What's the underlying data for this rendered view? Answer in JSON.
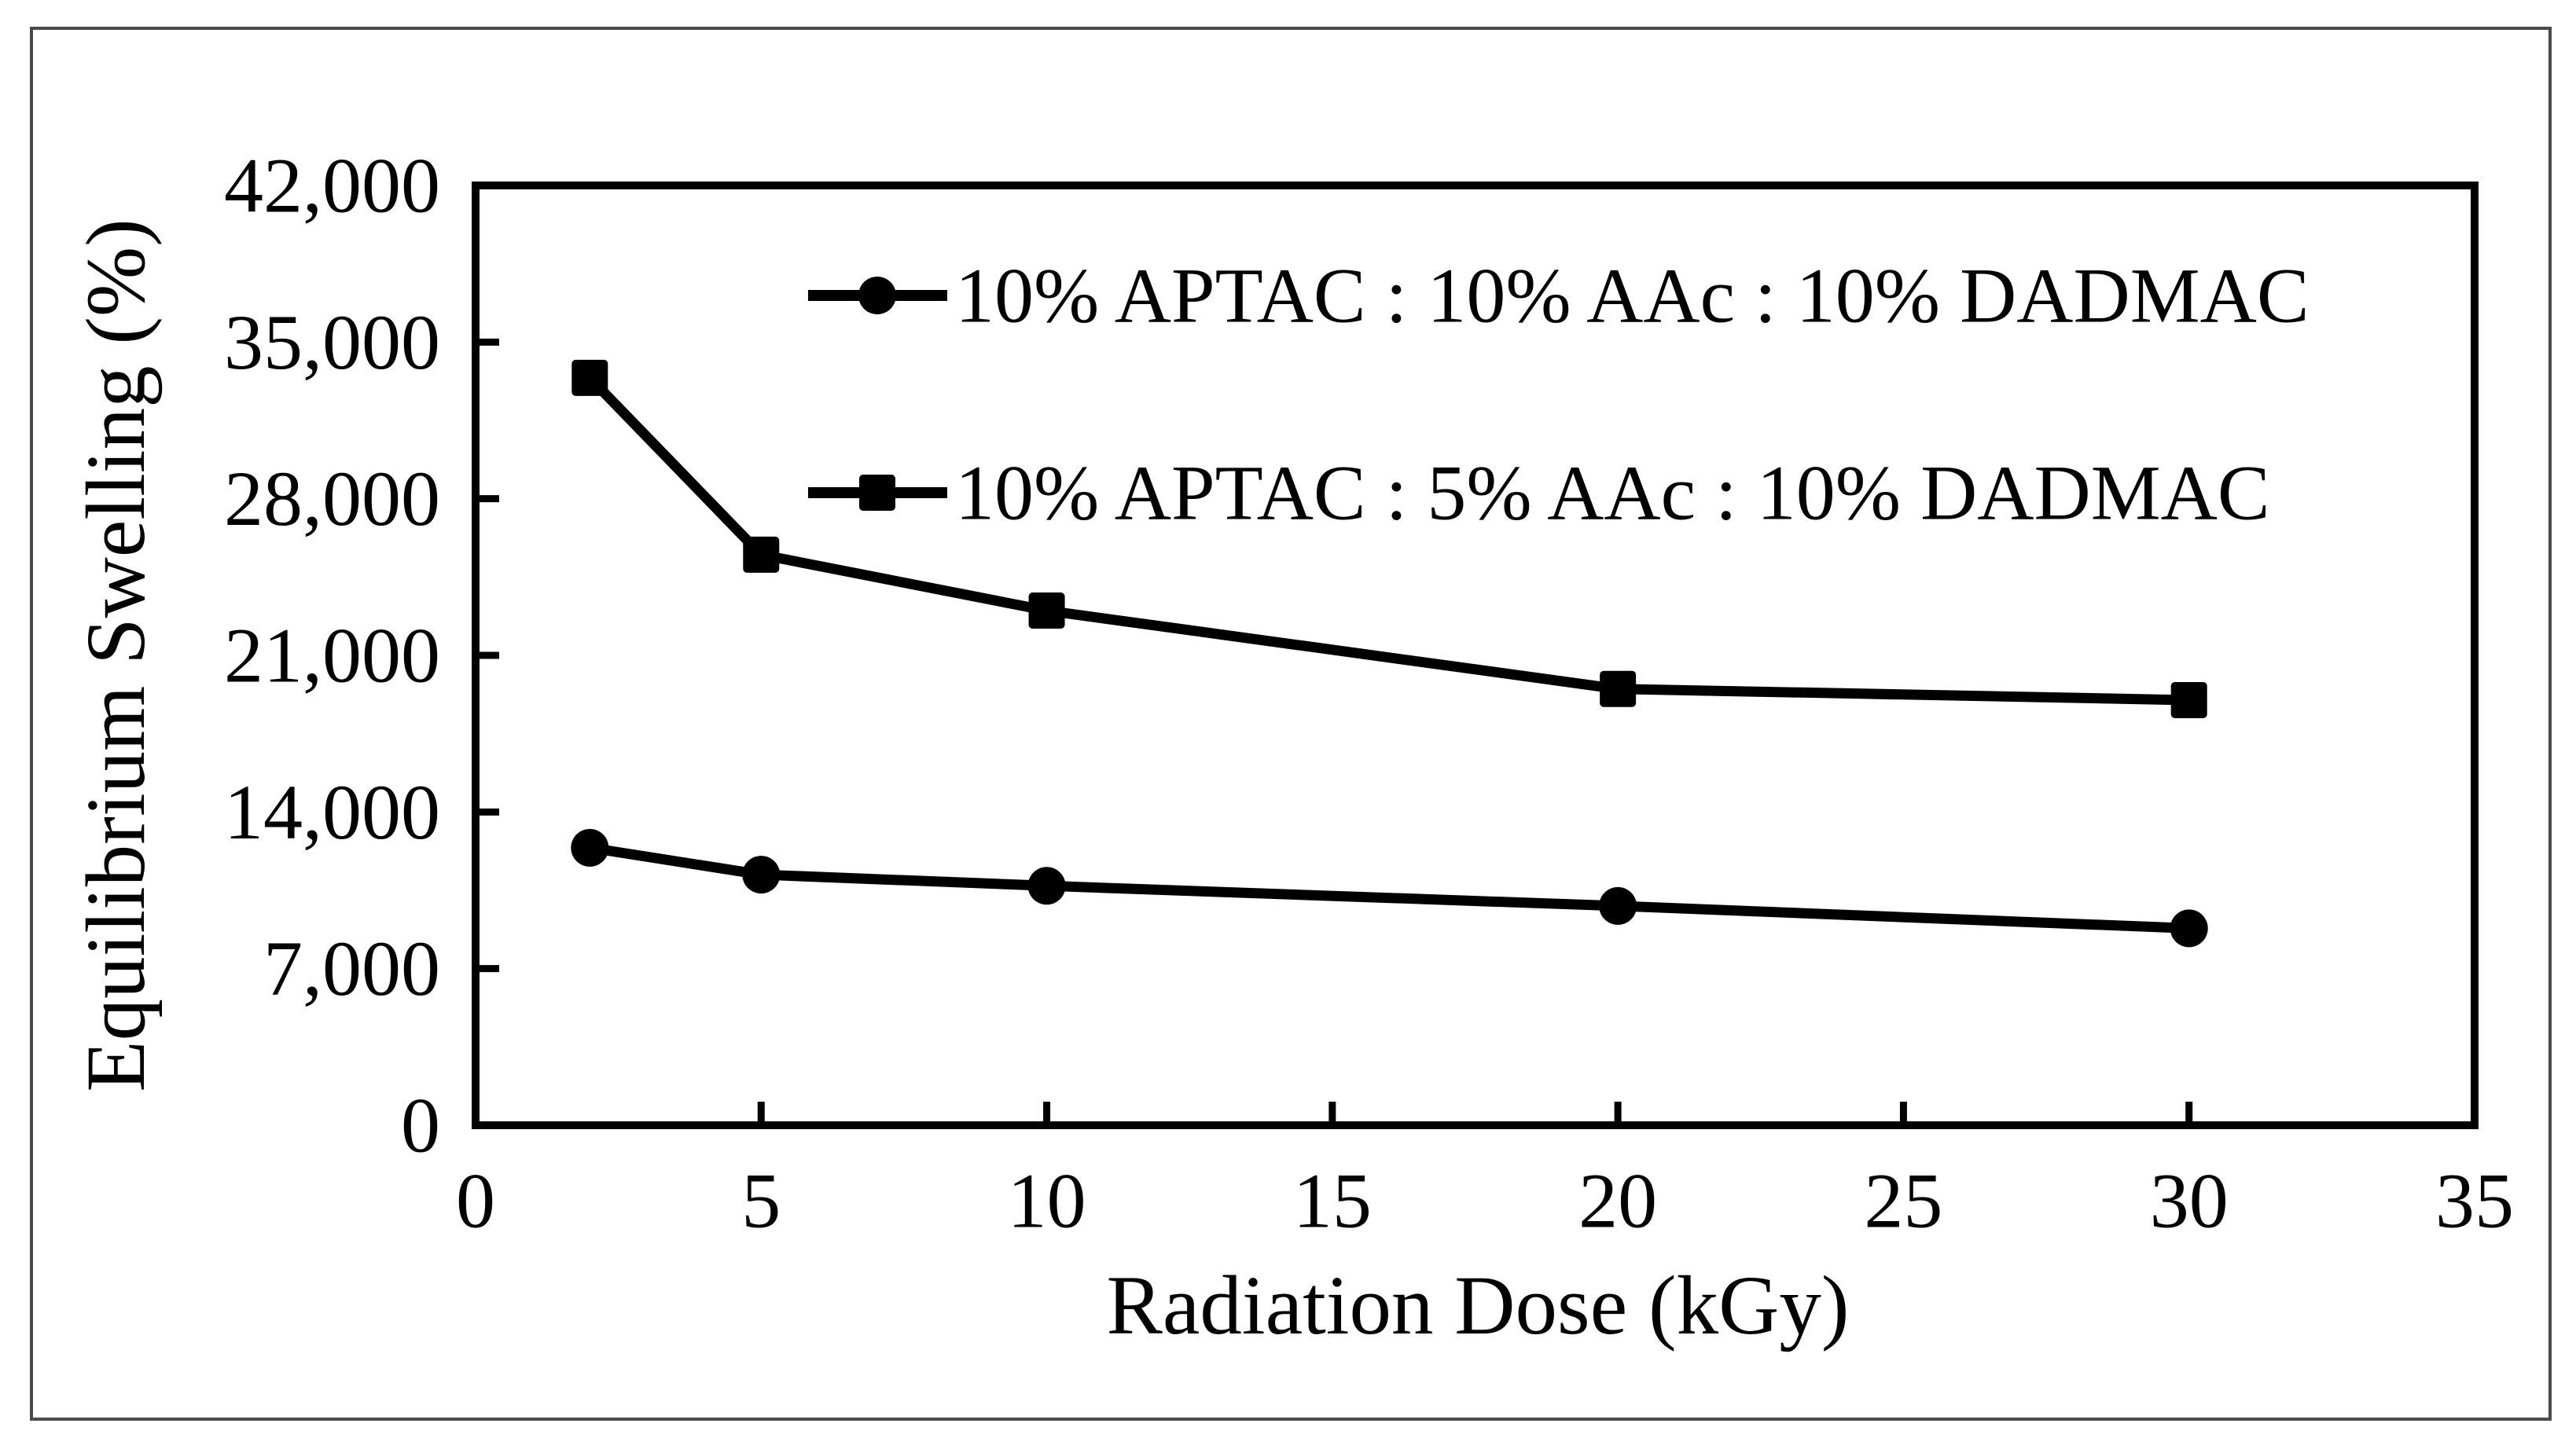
{
  "figure": {
    "background": "#ffffff",
    "border_color": "#4a4a4a",
    "line_color": "#000000"
  },
  "chart_data": {
    "type": "line",
    "title": "",
    "xlabel": "Radiation Dose (kGy)",
    "ylabel": "Equilibrium Swelling (%)",
    "xlim": [
      0,
      35
    ],
    "ylim": [
      0,
      42000
    ],
    "grid": false,
    "legend_position": "inside-top-center",
    "x_ticks": [
      0,
      5,
      10,
      15,
      20,
      25,
      30,
      35
    ],
    "x_tick_labels": [
      "0",
      "5",
      "10",
      "15",
      "20",
      "25",
      "30",
      "35"
    ],
    "y_ticks": [
      0,
      7000,
      14000,
      21000,
      28000,
      35000,
      42000
    ],
    "y_tick_labels": [
      "0",
      "7,000",
      "14,000",
      "21,000",
      "28,000",
      "35,000",
      "42,000"
    ],
    "series": [
      {
        "name": "10% APTAC : 10% AAc : 10% DADMAC",
        "marker": "circle",
        "color": "#000000",
        "x": [
          2,
          5,
          10,
          20,
          30
        ],
        "y": [
          12400,
          11200,
          10700,
          9800,
          8800
        ]
      },
      {
        "name": "10% APTAC : 5% AAc : 10% DADMAC",
        "marker": "square",
        "color": "#000000",
        "x": [
          2,
          5,
          10,
          20,
          30
        ],
        "y": [
          33400,
          25500,
          23000,
          19500,
          19000
        ]
      }
    ]
  }
}
